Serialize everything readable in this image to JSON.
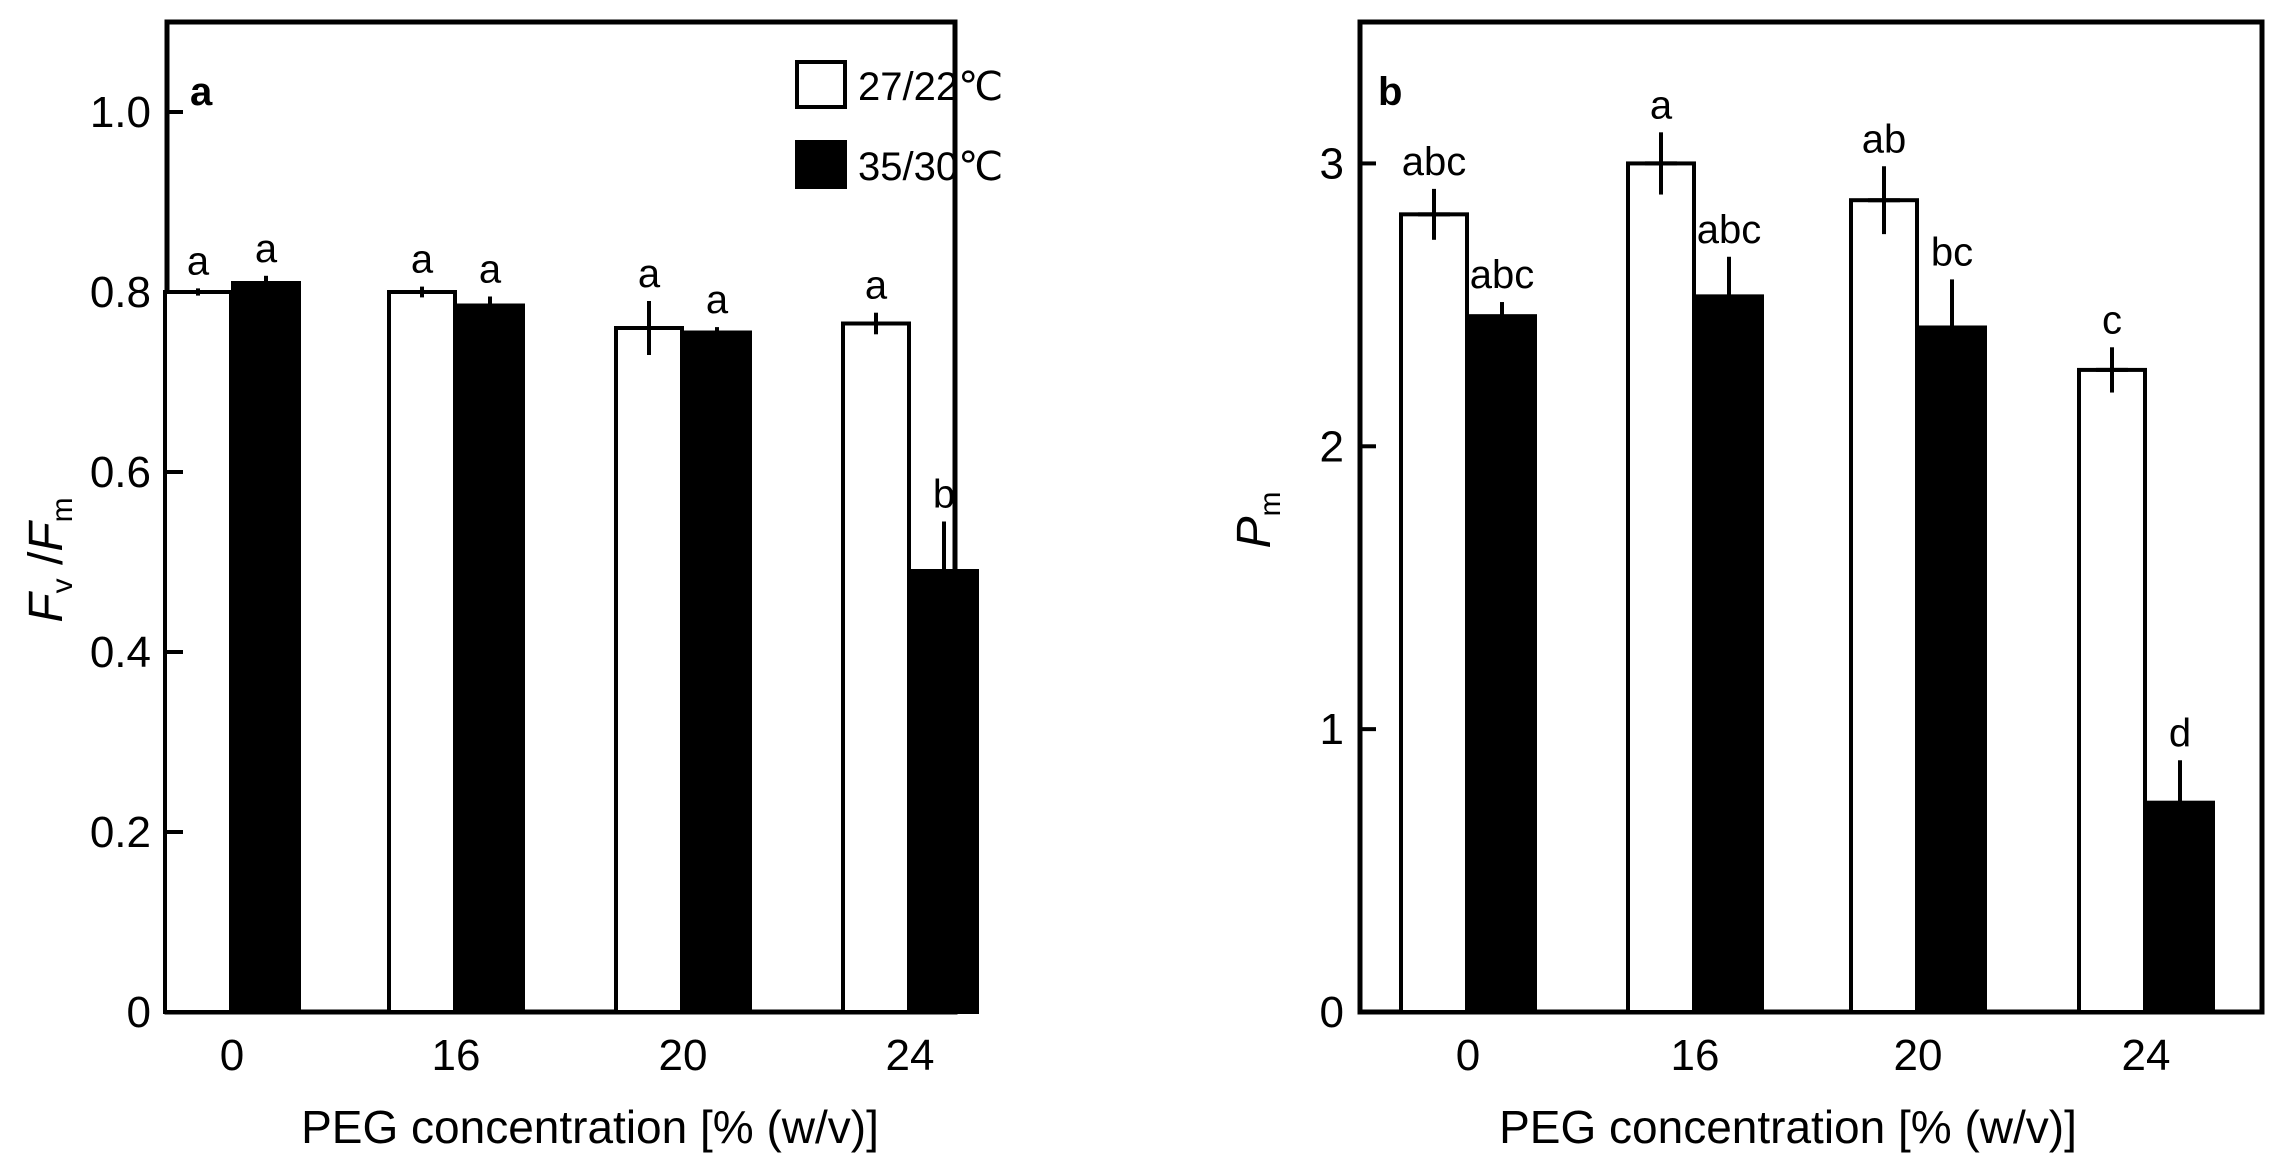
{
  "chart_data": [
    {
      "panel_label": "a",
      "type": "bar",
      "categories": [
        "0",
        "16",
        "20",
        "24"
      ],
      "xlabel": "PEG concentration [% (w/v)]",
      "ylabel": {
        "main1": "F",
        "sub1": "v",
        "sep": " /",
        "main2": "F",
        "sub2": "m"
      },
      "ylim": [
        0,
        1.1
      ],
      "yticks": [
        0,
        0.2,
        0.4,
        0.6,
        0.8,
        1.0
      ],
      "ytick_labels": [
        "0",
        "0.2",
        "0.4",
        "0.6",
        "0.8",
        "1.0"
      ],
      "legend": {
        "position": "top-right",
        "entries": [
          "27/22℃",
          "35/30℃"
        ]
      },
      "series": [
        {
          "name": "27/22℃",
          "fill": "#ffffff",
          "values": [
            0.8,
            0.8,
            0.76,
            0.765
          ],
          "errors": [
            0.004,
            0.006,
            0.03,
            0.012
          ],
          "letters": [
            "a",
            "a",
            "a",
            "a"
          ]
        },
        {
          "name": "35/30℃",
          "fill": "#000000",
          "values": [
            0.81,
            0.785,
            0.755,
            0.49
          ],
          "errors": [
            0.008,
            0.01,
            0.006,
            0.055
          ],
          "letters": [
            "a",
            "a",
            "a",
            "b"
          ]
        }
      ]
    },
    {
      "panel_label": "b",
      "type": "bar",
      "categories": [
        "0",
        "16",
        "20",
        "24"
      ],
      "xlabel": "PEG concentration [% (w/v)]",
      "ylabel": {
        "main1": "P",
        "sub1": "m"
      },
      "ylim": [
        0,
        3.5
      ],
      "yticks": [
        0,
        1,
        2,
        3
      ],
      "ytick_labels": [
        "0",
        "1",
        "2",
        "3"
      ],
      "series": [
        {
          "name": "27/22℃",
          "fill": "#ffffff",
          "values": [
            2.82,
            3.0,
            2.87,
            2.27
          ],
          "errors": [
            0.09,
            0.11,
            0.12,
            0.08
          ],
          "letters": [
            "abc",
            "a",
            "ab",
            "c"
          ]
        },
        {
          "name": "35/30℃",
          "fill": "#000000",
          "values": [
            2.46,
            2.53,
            2.42,
            0.74
          ],
          "errors": [
            0.05,
            0.14,
            0.17,
            0.15
          ],
          "letters": [
            "abc",
            "abc",
            "bc",
            "d"
          ]
        }
      ]
    }
  ]
}
